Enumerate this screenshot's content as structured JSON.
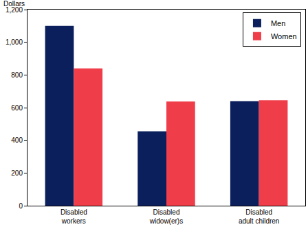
{
  "chart_data": {
    "type": "bar",
    "ylabel": "Dollars",
    "categories": [
      "Disabled workers",
      "Disabled widow(er)s",
      "Disabled adult children"
    ],
    "series": [
      {
        "name": "Men",
        "color": "#0b1f5c",
        "values": [
          1100,
          455,
          640
        ]
      },
      {
        "name": "Women",
        "color": "#ef3e4a",
        "values": [
          840,
          638,
          645
        ]
      }
    ],
    "ylim": [
      0,
      1200
    ],
    "yticks": [
      0,
      200,
      400,
      600,
      800,
      {
        "value": 1000,
        "label": "1,000"
      },
      {
        "value": 1200,
        "label": "1,200"
      }
    ],
    "grid": false,
    "legend": "top-right"
  }
}
